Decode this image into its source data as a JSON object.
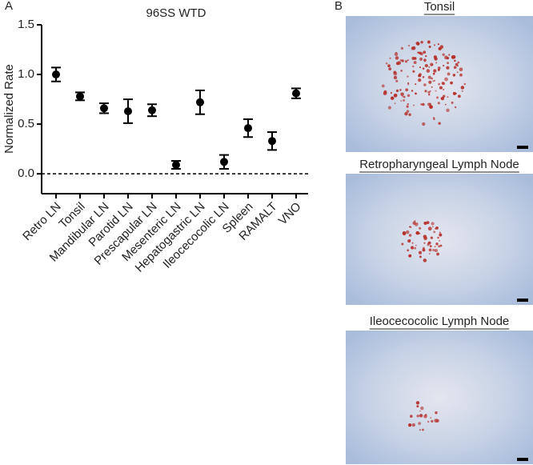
{
  "panel_labels": [
    "A",
    "B"
  ],
  "chart_data": {
    "type": "errorbar",
    "title": "96SS WTD",
    "y_label": "Normalized Rate",
    "categories": [
      "Retro LN",
      "Tonsil",
      "Mandibular LN",
      "Parotid LN",
      "Prescapular LN",
      "Mesenteric LN",
      "Hepatogastric LN",
      "Ileocecocolic LN",
      "Spleen",
      "RAMALT",
      "VNO"
    ],
    "values": [
      1.0,
      0.78,
      0.66,
      0.63,
      0.64,
      0.09,
      0.72,
      0.12,
      0.46,
      0.33,
      0.81
    ],
    "errors": [
      0.07,
      0.04,
      0.05,
      0.12,
      0.06,
      0.04,
      0.12,
      0.07,
      0.09,
      0.09,
      0.05
    ],
    "color": "#000000",
    "ylim": [
      -0.2,
      1.5
    ],
    "yticks": [
      {
        "value": 0,
        "label": "0.0"
      },
      0.5,
      {
        "value": 1,
        "label": "1.0"
      },
      1.5
    ],
    "reference_line": 0
  },
  "images": [
    {
      "title": "Tonsil"
    },
    {
      "title": "Retropharyngeal Lymph Node"
    },
    {
      "title": "Ileocecocolic Lymph Node"
    }
  ]
}
